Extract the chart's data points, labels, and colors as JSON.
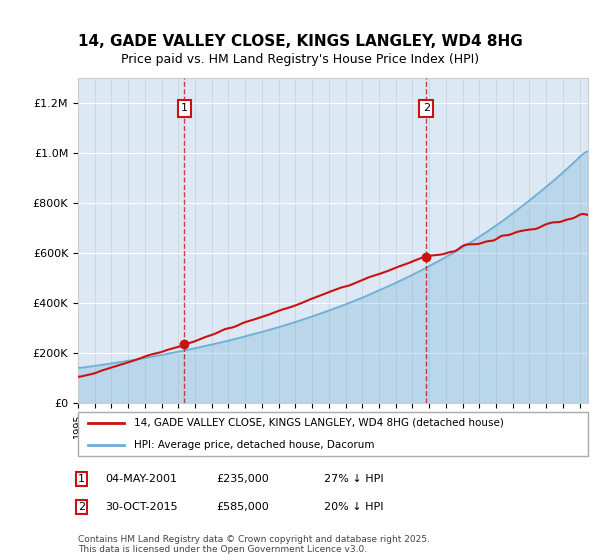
{
  "title": "14, GADE VALLEY CLOSE, KINGS LANGLEY, WD4 8HG",
  "subtitle": "Price paid vs. HM Land Registry's House Price Index (HPI)",
  "bg_color": "#dce9f5",
  "plot_bg": "#dce9f5",
  "sale1": {
    "date": 2001.34,
    "price": 235000,
    "label": "1"
  },
  "sale2": {
    "date": 2015.83,
    "price": 585000,
    "label": "2"
  },
  "hpi_color": "#6dadd6",
  "price_color": "#cc1111",
  "annotation_box_color": "#cc1111",
  "ylim": [
    0,
    1300000
  ],
  "xlim_start": 1995,
  "xlim_end": 2025.5,
  "footer": "Contains HM Land Registry data © Crown copyright and database right 2025.\nThis data is licensed under the Open Government Licence v3.0.",
  "legend_line1": "14, GADE VALLEY CLOSE, KINGS LANGLEY, WD4 8HG (detached house)",
  "legend_line2": "HPI: Average price, detached house, Dacorum",
  "table_row1": "1    04-MAY-2001    £235,000    27% ↓ HPI",
  "table_row2": "2    30-OCT-2015    £585,000    20% ↓ HPI"
}
